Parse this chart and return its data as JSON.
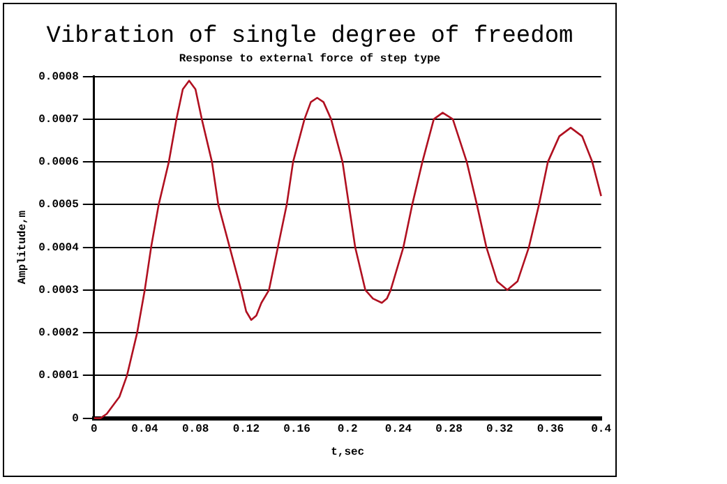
{
  "chart_data": {
    "type": "line",
    "title": "Vibration of single degree of freedom",
    "subtitle": "Response to external force of step type",
    "xlabel": "t,sec",
    "ylabel": "Amplitude,m",
    "xlim": [
      0,
      0.4
    ],
    "xticks": [
      0,
      0.04,
      0.08,
      0.12,
      0.16,
      0.2,
      0.24,
      0.28,
      0.32,
      0.36,
      0.4
    ],
    "ylim": [
      0,
      0.0008
    ],
    "yticks": [
      0,
      0.0001,
      0.0002,
      0.0003,
      0.0004,
      0.0005,
      0.0006,
      0.0007,
      0.0008
    ],
    "grid": "y",
    "legend": false,
    "marker": "none",
    "line_style": "solid",
    "series": [
      {
        "color": "#b01020",
        "x": [
          0,
          0.005,
          0.01,
          0.015,
          0.02,
          0.026,
          0.034,
          0.04,
          0.045,
          0.051,
          0.059,
          0.065,
          0.07,
          0.075,
          0.08,
          0.085,
          0.093,
          0.098,
          0.107,
          0.116,
          0.12,
          0.124,
          0.128,
          0.132,
          0.138,
          0.145,
          0.152,
          0.157,
          0.166,
          0.171,
          0.176,
          0.181,
          0.187,
          0.196,
          0.201,
          0.206,
          0.214,
          0.22,
          0.227,
          0.231,
          0.234,
          0.244,
          0.251,
          0.259,
          0.268,
          0.275,
          0.283,
          0.294,
          0.302,
          0.3095,
          0.318,
          0.326,
          0.334,
          0.343,
          0.351,
          0.358,
          0.367,
          0.376,
          0.385,
          0.393,
          0.4
        ],
        "values": [
          0,
          0,
          1e-05,
          3e-05,
          5e-05,
          0.0001,
          0.0002,
          0.0003,
          0.0004,
          0.0005,
          0.0006,
          0.0007,
          0.00077,
          0.00079,
          0.00077,
          0.0007,
          0.0006,
          0.0005,
          0.0004,
          0.0003,
          0.00025,
          0.00023,
          0.00024,
          0.00027,
          0.0003,
          0.0004,
          0.0005,
          0.0006,
          0.0007,
          0.00074,
          0.00075,
          0.00074,
          0.0007,
          0.0006,
          0.0005,
          0.0004,
          0.0003,
          0.00028,
          0.00027,
          0.00028,
          0.0003,
          0.0004,
          0.0005,
          0.0006,
          0.0007,
          0.000715,
          0.0007,
          0.0006,
          0.0005,
          0.0004,
          0.00032,
          0.0003,
          0.00032,
          0.0004,
          0.0005,
          0.0006,
          0.00066,
          0.00068,
          0.00066,
          0.0006,
          0.00052
        ]
      }
    ]
  }
}
